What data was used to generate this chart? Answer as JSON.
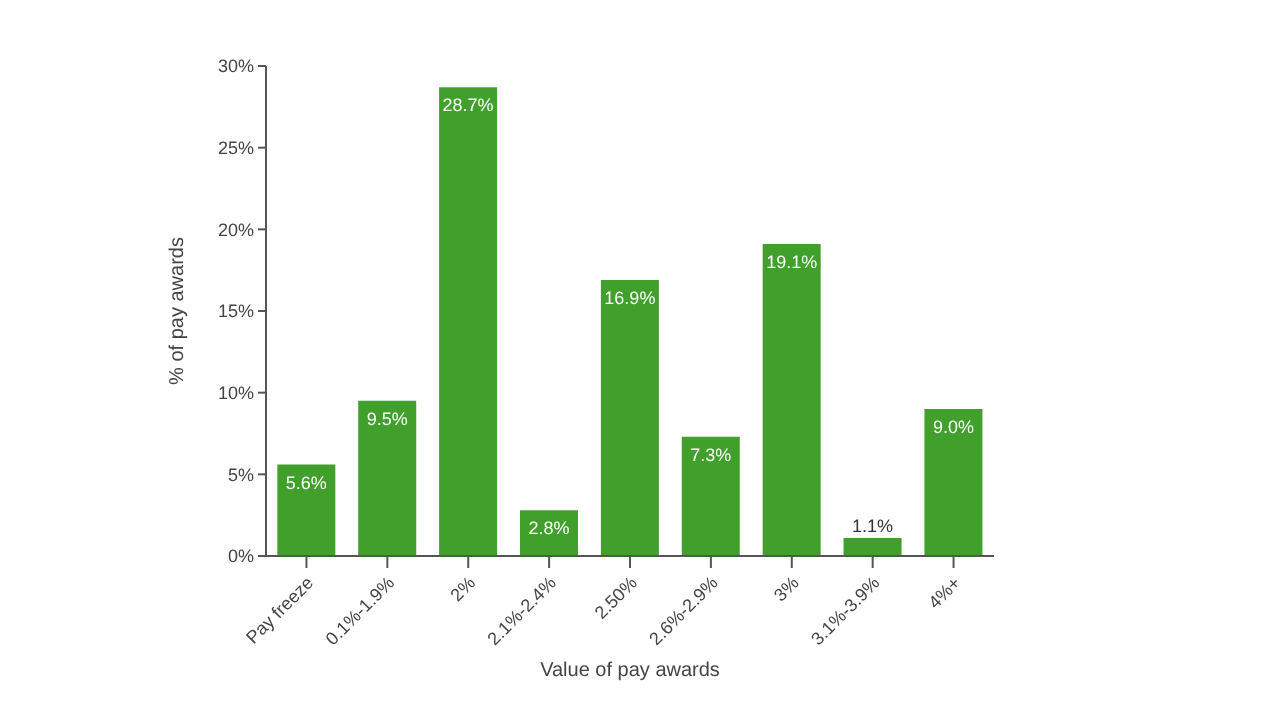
{
  "chart_data": {
    "type": "bar",
    "xlabel": "Value of pay awards",
    "ylabel": "% of pay awards",
    "categories": [
      "Pay freeze",
      "0.1%-1.9%",
      "2%",
      "2.1%-2.4%",
      "2.50%",
      "2.6%-2.9%",
      "3%",
      "3.1%-3.9%",
      "4%+"
    ],
    "values": [
      5.6,
      9.5,
      28.7,
      2.8,
      16.9,
      7.3,
      19.1,
      1.1,
      9.0
    ],
    "value_labels": [
      "5.6%",
      "9.5%",
      "28.7%",
      "2.8%",
      "16.9%",
      "7.3%",
      "19.1%",
      "1.1%",
      "9.0%"
    ],
    "color": "#41a02c",
    "ylim": [
      0,
      30
    ],
    "yticks": [
      {
        "value": 0,
        "label": "0%"
      },
      {
        "value": 5,
        "label": "5%"
      },
      {
        "value": 10,
        "label": "10%"
      },
      {
        "value": 15,
        "label": "15%"
      },
      {
        "value": 20,
        "label": "20%"
      },
      {
        "value": 25,
        "label": "25%"
      },
      {
        "value": 30,
        "label": "30%"
      }
    ],
    "grid": false,
    "legend": false
  }
}
